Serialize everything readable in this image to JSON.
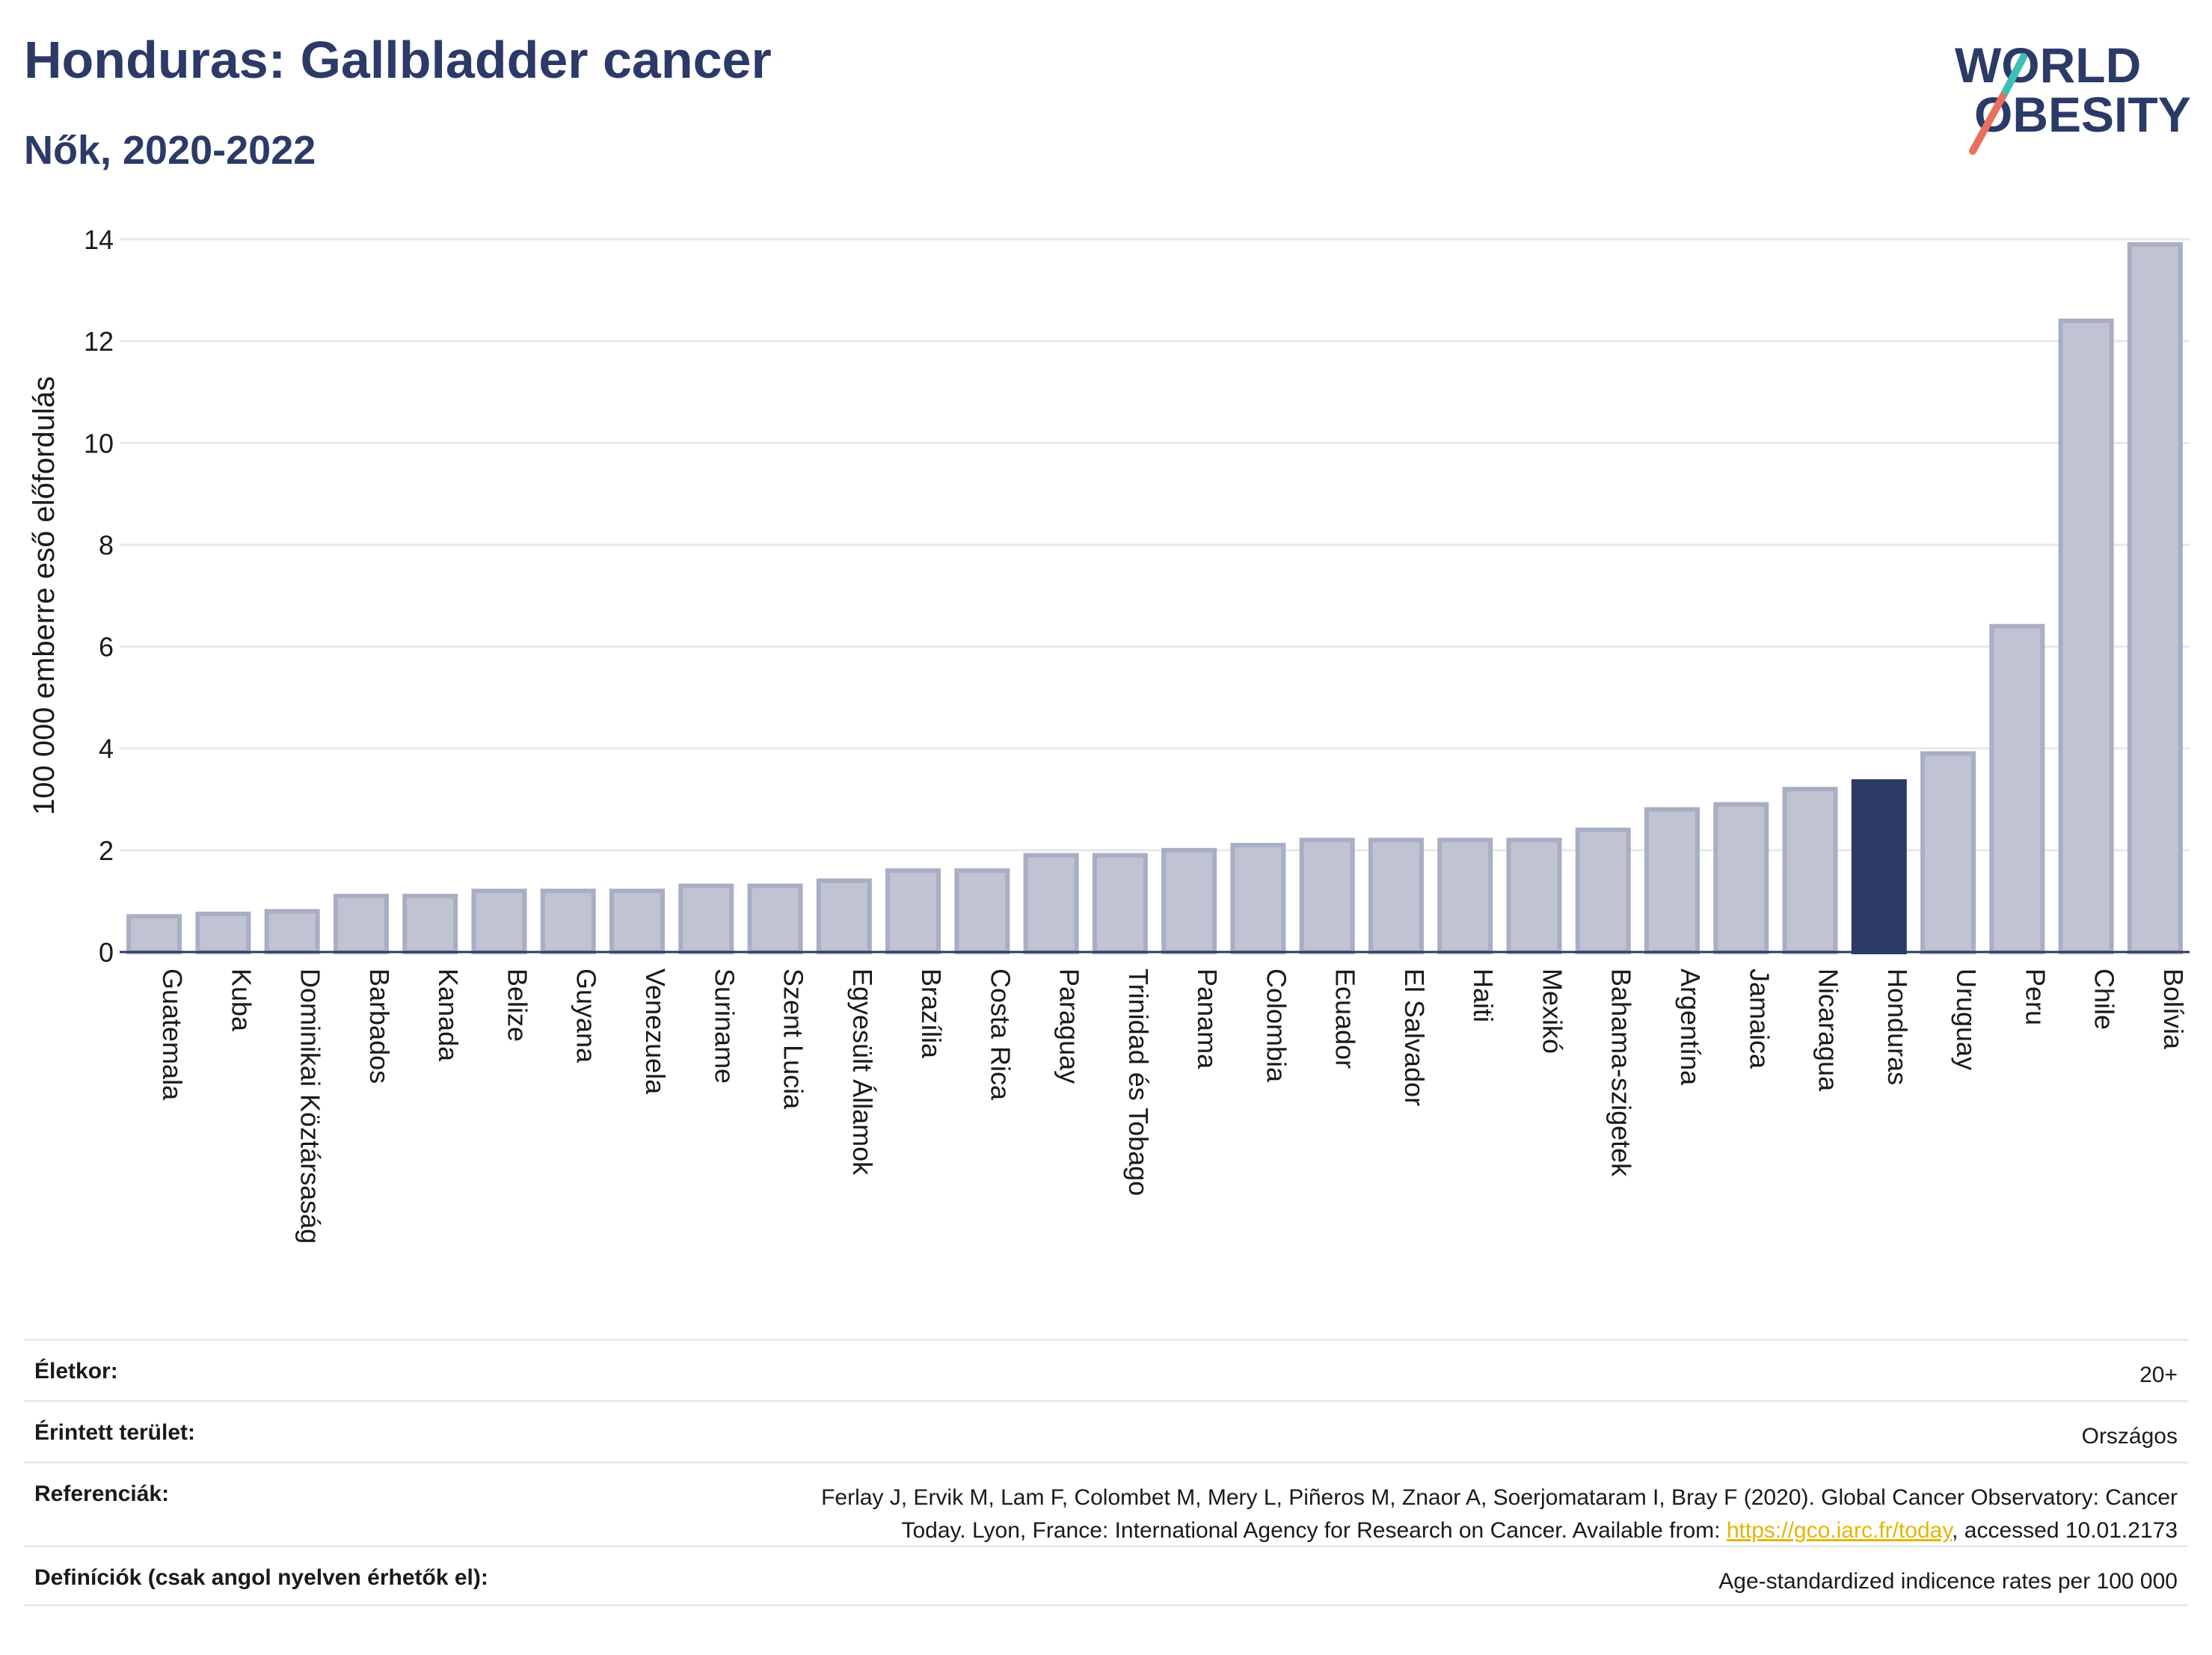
{
  "header": {
    "title": "Honduras: Gallbladder cancer",
    "subtitle": "Nők, 2020-2022"
  },
  "logo": {
    "line1": "WORLD",
    "line2": "OBESITY",
    "text_color": "#2b3a67",
    "slash_colors": [
      "#e8705e",
      "#3dbfb6"
    ]
  },
  "chart_data": {
    "type": "bar",
    "title": "Honduras: Gallbladder cancer",
    "subtitle": "Nők, 2020-2022",
    "xlabel": "",
    "ylabel": "100 000 emberre eső előfordulás",
    "ylim": [
      0,
      14
    ],
    "yticks": [
      0,
      2,
      4,
      6,
      8,
      10,
      12,
      14
    ],
    "grid": true,
    "highlight": "Honduras",
    "colors": {
      "bar": "#c0c4d2",
      "bar_edge": "#a8aec3",
      "highlight": "#2b3a67"
    },
    "categories": [
      "Guatemala",
      "Kuba",
      "Dominikai Köztársaság",
      "Barbados",
      "Kanada",
      "Belize",
      "Guyana",
      "Venezuela",
      "Suriname",
      "Szent Lucia",
      "Egyesült Államok",
      "Brazília",
      "Costa Rica",
      "Paraguay",
      "Trinidad és Tobago",
      "Panama",
      "Colombia",
      "Ecuador",
      "El Salvador",
      "Haiti",
      "Mexikó",
      "Bahama-szigetek",
      "Argentína",
      "Jamaica",
      "Nicaragua",
      "Honduras",
      "Uruguay",
      "Peru",
      "Chile",
      "Bolívia"
    ],
    "values": [
      0.7,
      0.75,
      0.8,
      1.1,
      1.1,
      1.2,
      1.2,
      1.2,
      1.3,
      1.3,
      1.4,
      1.6,
      1.6,
      1.9,
      1.9,
      2.0,
      2.1,
      2.2,
      2.2,
      2.2,
      2.2,
      2.4,
      2.8,
      2.9,
      3.2,
      3.35,
      3.9,
      6.4,
      12.4,
      13.9
    ]
  },
  "info": {
    "age_label": "Életkor:",
    "age_value": "20+",
    "area_label": "Érintett terület:",
    "area_value": "Országos",
    "ref_label": "Referenciák:",
    "ref_text_1": "Ferlay J, Ervik M, Lam F, Colombet M, Mery L, Piñeros M, Znaor A, Soerjomataram I, Bray F (2020). Global Cancer Observatory: Cancer",
    "ref_text_2a": "Today. Lyon, France: International Agency for Research on Cancer. Available from: ",
    "ref_link": "https://gco.iarc.fr/today",
    "ref_text_2b": ", accessed 10.01.2173",
    "def_label": "Definíciók (csak angol nyelven érhetők el):",
    "def_value": "Age-standardized indicence rates per 100 000"
  }
}
